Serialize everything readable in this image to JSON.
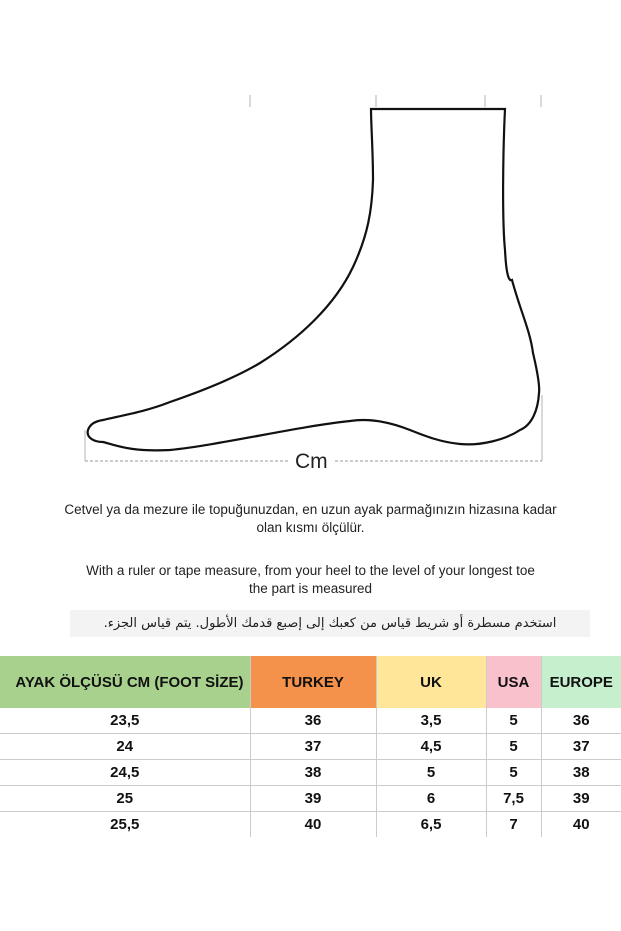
{
  "diagram": {
    "measure_label": "Cm"
  },
  "instructions": {
    "turkish": "Cetvel ya da mezure ile topuğunuzdan, en uzun ayak parmağınızın hizasına kadar olan kısmı ölçülür.",
    "english_line1": "With a ruler or tape measure, from your heel to the level of your longest toe",
    "english_line2": "the part is measured",
    "arabic": "استخدم مسطرة أو شريط قياس من كعبك إلى إصبع قدمك الأطول. يتم قياس الجزء."
  },
  "table": {
    "headers": [
      {
        "label": "AYAK ÖLÇÜSÜ CM (FOOT SİZE)",
        "color": "#a9d18e"
      },
      {
        "label": "TURKEY",
        "color": "#f4914a"
      },
      {
        "label": "UK",
        "color": "#ffe699"
      },
      {
        "label": "USA",
        "color": "#f8c1cc"
      },
      {
        "label": "EUROPE",
        "color": "#c6efce"
      }
    ],
    "rows": [
      [
        "23,5",
        "36",
        "3,5",
        "5",
        "36"
      ],
      [
        "24",
        "37",
        "4,5",
        "5",
        "37"
      ],
      [
        "24,5",
        "38",
        "5",
        "5",
        "38"
      ],
      [
        "25",
        "39",
        "6",
        "7,5",
        "39"
      ],
      [
        "25,5",
        "40",
        "6,5",
        "7",
        "40"
      ]
    ]
  }
}
